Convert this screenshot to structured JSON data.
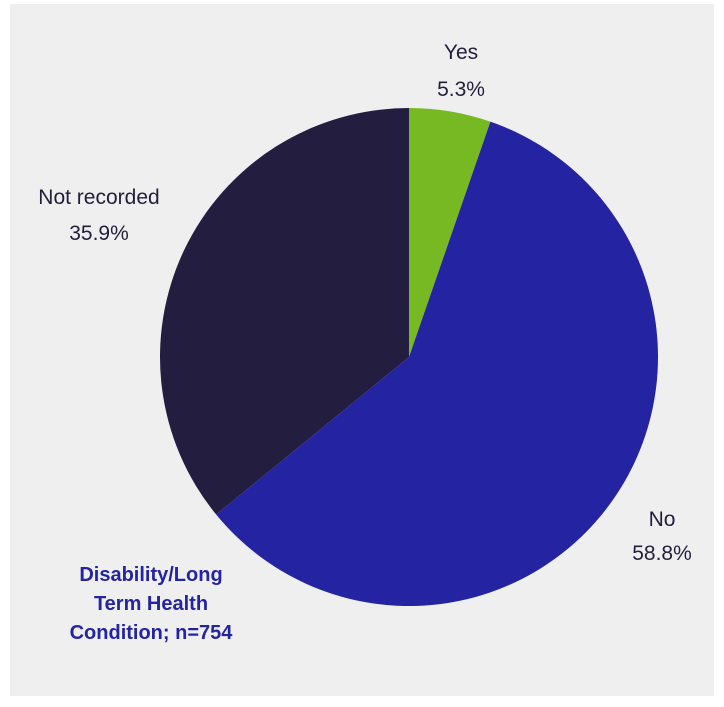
{
  "chart_data": {
    "type": "pie",
    "title": "Disability/Long\nTerm Health\nCondition; n=754",
    "start_angle_deg": 0,
    "direction": "clockwise",
    "slices": [
      {
        "label": "Yes",
        "value": 5.3,
        "display": "5.3%",
        "color": "#76b923"
      },
      {
        "label": "No",
        "value": 58.8,
        "display": "58.8%",
        "color": "#2424a3"
      },
      {
        "label": "Not recorded",
        "value": 35.9,
        "display": "35.9%",
        "color": "#231e3f"
      }
    ]
  },
  "colors": {
    "background": "#efeff0",
    "label_text": "#231f3a",
    "title_text": "#2424a3"
  }
}
